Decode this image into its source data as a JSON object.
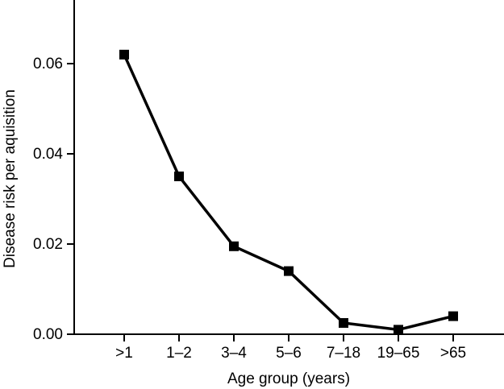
{
  "chart_data": {
    "type": "line",
    "title": "",
    "xlabel": "Age group (years)",
    "ylabel": "Disease risk per aquisition",
    "categories": [
      ">1",
      "1–2",
      "3–4",
      "5–6",
      "7–18",
      "19–65",
      ">65"
    ],
    "series": [
      {
        "name": "disease-risk-per-acquisition",
        "values": [
          0.062,
          0.035,
          0.0195,
          0.014,
          0.0025,
          0.001,
          0.004
        ]
      }
    ],
    "y_ticks": [
      {
        "value": 0.0,
        "label": "0.00"
      },
      {
        "value": 0.02,
        "label": "0.02"
      },
      {
        "value": 0.04,
        "label": "0.04"
      },
      {
        "value": 0.06,
        "label": "0.06"
      }
    ],
    "ylim": [
      0,
      0.074
    ],
    "marker": "square",
    "grid": false,
    "legend_position": "none",
    "colors": {
      "line": "#000000",
      "marker": "#000000",
      "axis": "#000000",
      "text": "#000000",
      "background": "#ffffff"
    }
  }
}
